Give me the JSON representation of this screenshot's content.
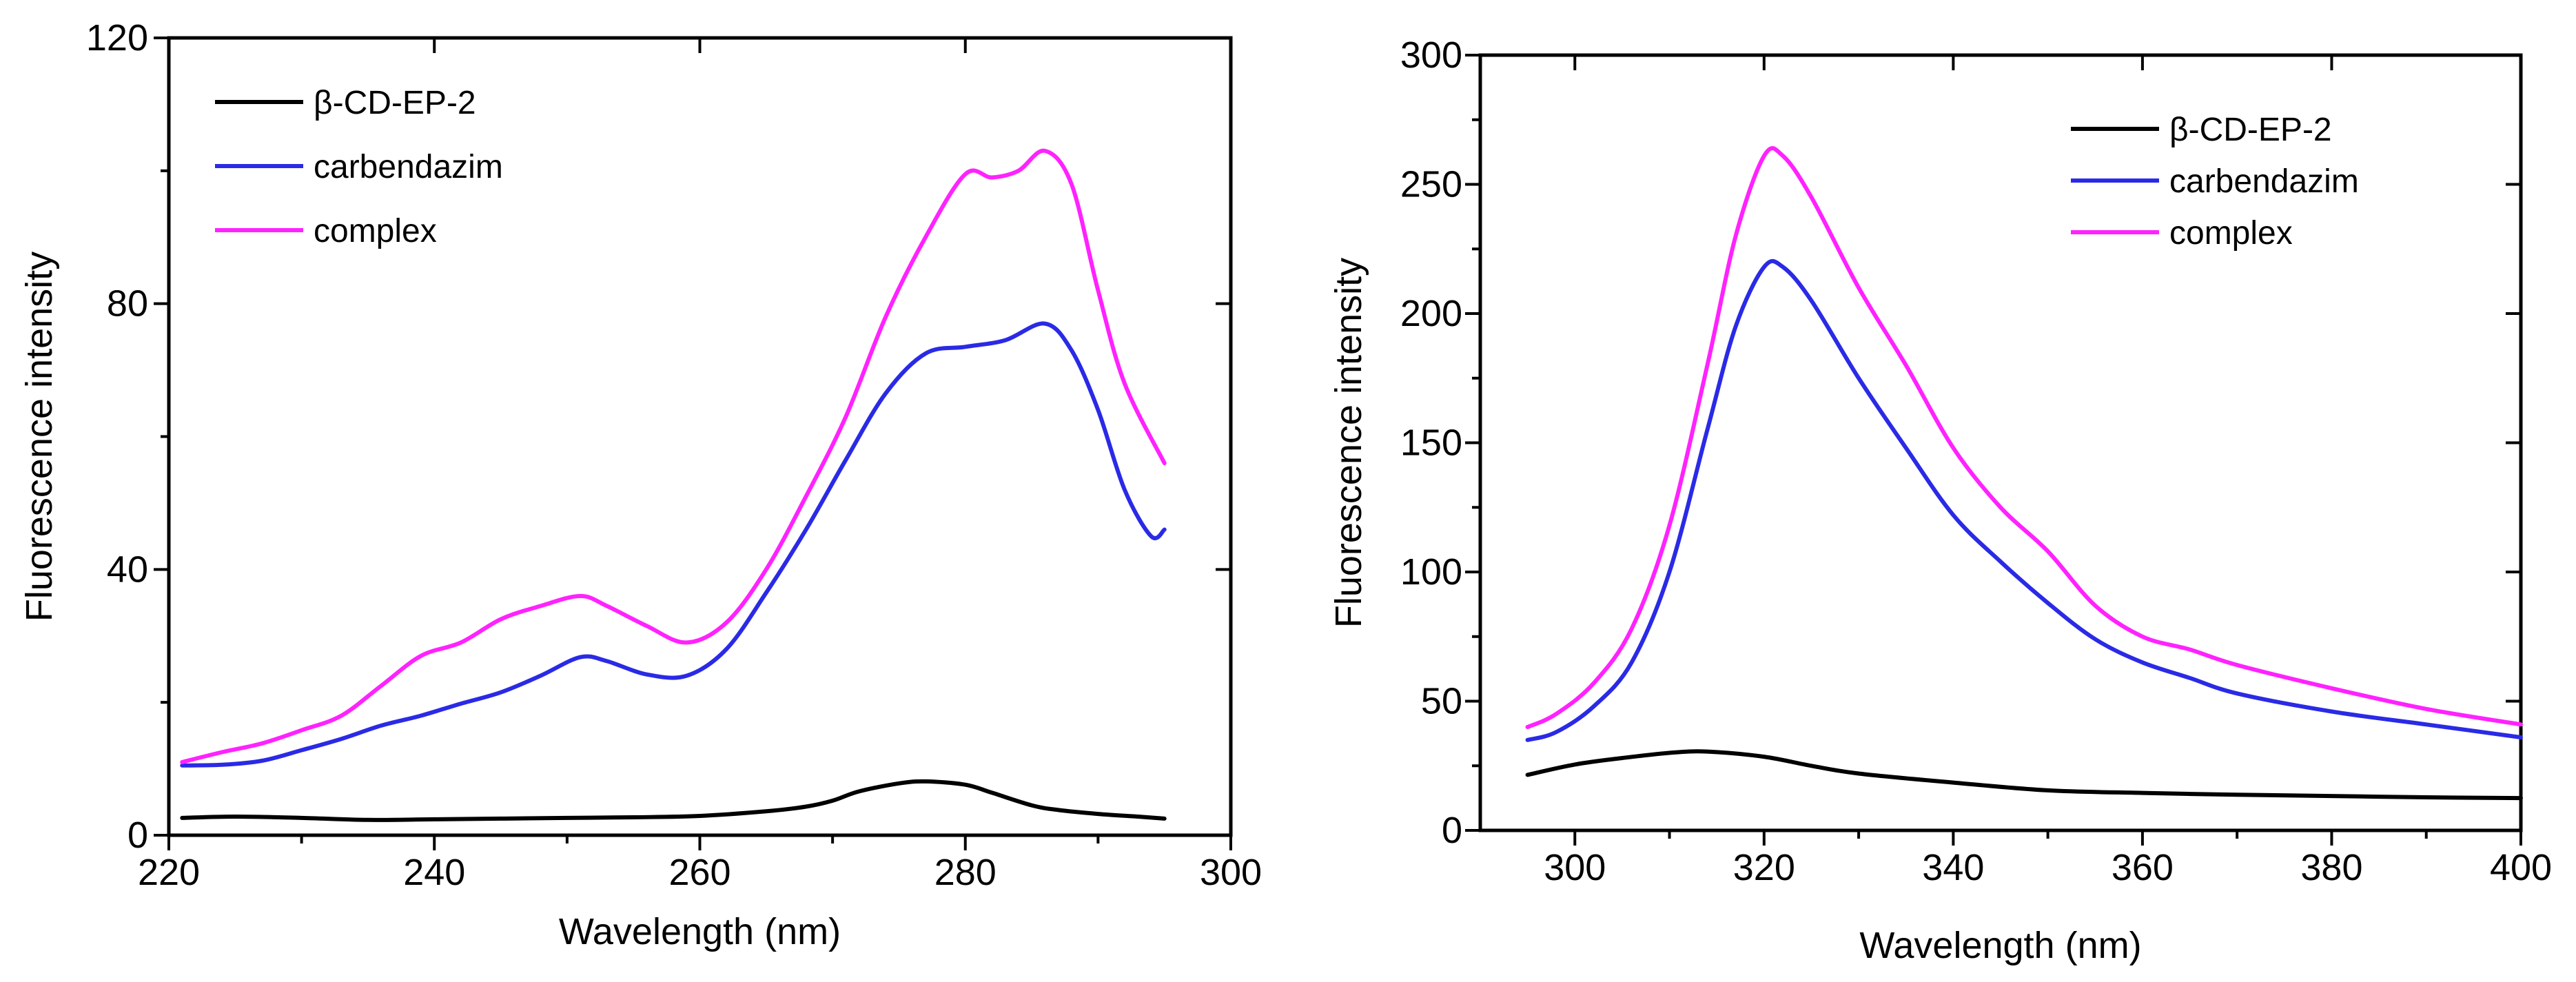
{
  "chart_data": [
    {
      "type": "line",
      "title": "",
      "xlabel": "Wavelength (nm)",
      "ylabel": "Fluorescence intensity",
      "xlim": [
        220,
        300
      ],
      "ylim": [
        0,
        120
      ],
      "xticks": [
        220,
        240,
        260,
        280,
        300
      ],
      "yticks": [
        0,
        40,
        80,
        120
      ],
      "legend_position": "top-left",
      "series": [
        {
          "name": "β-CD-EP-2",
          "color": "#000000",
          "x": [
            221,
            225,
            230,
            235,
            240,
            245,
            250,
            255,
            260,
            265,
            268,
            270,
            272,
            275,
            277,
            280,
            282,
            285,
            287,
            290,
            293,
            295
          ],
          "y": [
            2.6,
            2.8,
            2.6,
            2.3,
            2.4,
            2.5,
            2.6,
            2.7,
            2.9,
            3.6,
            4.3,
            5.2,
            6.6,
            7.8,
            8.1,
            7.6,
            6.4,
            4.5,
            3.8,
            3.2,
            2.8,
            2.5
          ]
        },
        {
          "name": "carbendazim",
          "color": "#2a2ae6",
          "x": [
            221,
            224,
            227,
            230,
            233,
            236,
            239,
            242,
            245,
            248,
            251,
            253,
            256,
            259,
            262,
            265,
            268,
            271,
            274,
            277,
            280,
            283,
            286,
            288,
            290,
            292,
            294,
            295
          ],
          "y": [
            10.5,
            10.6,
            11.2,
            12.8,
            14.5,
            16.5,
            18.0,
            19.8,
            21.5,
            24.0,
            26.8,
            26.2,
            24.2,
            24.0,
            28.0,
            36.5,
            46.0,
            56.5,
            66.5,
            72.5,
            73.5,
            74.5,
            77.0,
            73.0,
            64.0,
            52.0,
            45.0,
            46.0
          ]
        },
        {
          "name": "complex",
          "color": "#ff22ff",
          "x": [
            221,
            224,
            227,
            230,
            233,
            236,
            239,
            242,
            245,
            248,
            251,
            253,
            256,
            259,
            262,
            265,
            268,
            271,
            274,
            277,
            280,
            282,
            284,
            286,
            288,
            290,
            292,
            295
          ],
          "y": [
            11.0,
            12.5,
            13.8,
            15.8,
            18.0,
            22.5,
            27.0,
            29.0,
            32.5,
            34.5,
            36.0,
            34.5,
            31.5,
            29.0,
            32.0,
            40.0,
            51.0,
            63.0,
            78.0,
            90.0,
            99.5,
            99.0,
            100.0,
            103.0,
            98.0,
            82.0,
            68.0,
            56.0
          ]
        }
      ]
    },
    {
      "type": "line",
      "title": "",
      "xlabel": "Wavelength (nm)",
      "ylabel": "Fluorescence intensity",
      "xlim": [
        290,
        400
      ],
      "ylim": [
        0,
        300
      ],
      "xticks": [
        300,
        320,
        340,
        360,
        380,
        400
      ],
      "yticks": [
        0,
        50,
        100,
        150,
        200,
        250,
        300
      ],
      "legend_position": "top-right",
      "series": [
        {
          "name": "β-CD-EP-2",
          "color": "#000000",
          "x": [
            295,
            300,
            305,
            310,
            314,
            320,
            325,
            330,
            340,
            350,
            360,
            370,
            380,
            390,
            400
          ],
          "y": [
            21.5,
            25.5,
            28.0,
            30.0,
            30.5,
            28.5,
            25.0,
            22.0,
            18.5,
            15.5,
            14.5,
            13.8,
            13.3,
            12.8,
            12.5
          ]
        },
        {
          "name": "carbendazim",
          "color": "#2a2ae6",
          "x": [
            295,
            298,
            302,
            306,
            310,
            314,
            317,
            320,
            322,
            325,
            330,
            335,
            340,
            345,
            350,
            355,
            360,
            365,
            370,
            380,
            390,
            400
          ],
          "y": [
            35.0,
            38.0,
            48.0,
            65.0,
            100.0,
            155.0,
            195.0,
            218.0,
            218.0,
            205.0,
            175.0,
            148.0,
            122.0,
            104.0,
            88.0,
            74.0,
            65.0,
            59.0,
            53.0,
            46.0,
            41.0,
            36.0
          ]
        },
        {
          "name": "complex",
          "color": "#ff22ff",
          "x": [
            295,
            298,
            302,
            306,
            310,
            314,
            317,
            320,
            322,
            325,
            330,
            335,
            340,
            345,
            350,
            355,
            360,
            365,
            370,
            380,
            390,
            400
          ],
          "y": [
            40.0,
            45.0,
            57.0,
            78.0,
            118.0,
            180.0,
            230.0,
            261.0,
            261.0,
            245.0,
            210.0,
            180.0,
            148.0,
            125.0,
            108.0,
            87.0,
            75.0,
            70.0,
            64.0,
            55.0,
            47.0,
            41.0
          ]
        }
      ]
    }
  ]
}
